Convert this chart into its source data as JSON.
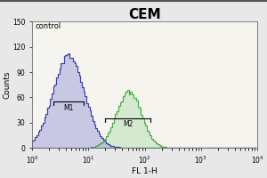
{
  "title": "CEM",
  "title_fontsize": 11,
  "title_fontweight": "bold",
  "xlabel": "FL 1-H",
  "ylabel": "Counts",
  "xlim": [
    1.0,
    10000.0
  ],
  "ylim": [
    0,
    150
  ],
  "yticks": [
    0,
    30,
    60,
    90,
    120,
    150
  ],
  "control_label": "control",
  "bg_color": "#e8e8e8",
  "plot_bg_color": "#f5f4ee",
  "blue_color": "#3333aa",
  "green_color": "#33aa33",
  "blue_fill_color": "#7777cc",
  "green_fill_color": "#77cc77",
  "m1_label": "M1",
  "m2_label": "M2",
  "blue_peak_mean_log": 0.65,
  "blue_peak_sigma": 0.28,
  "blue_peak_height": 110,
  "green_peak_mean_log": 1.72,
  "green_peak_sigma": 0.22,
  "green_peak_height": 68,
  "m1_x1_log": 0.38,
  "m1_x2_log": 0.92,
  "m2_x1_log": 1.3,
  "m2_x2_log": 2.1,
  "m1_bracket_y": 55,
  "m2_bracket_y": 35,
  "border_top_color": "#555555"
}
